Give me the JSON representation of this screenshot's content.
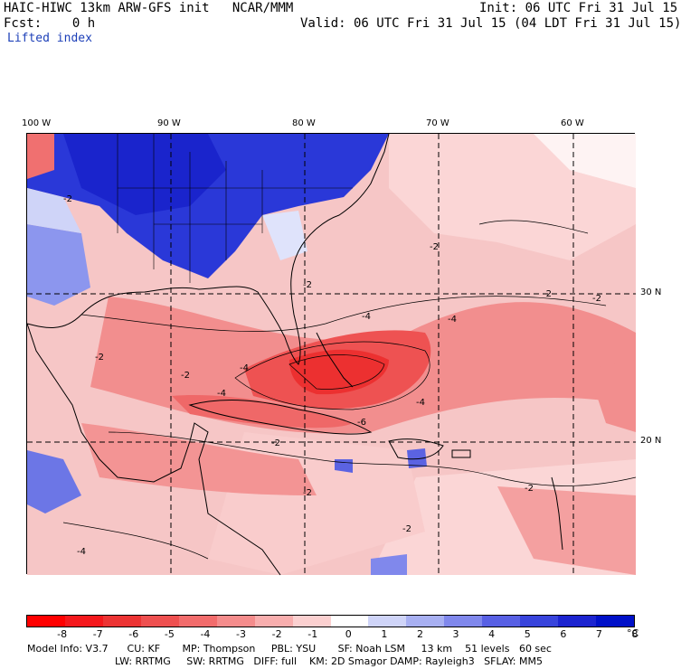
{
  "header": {
    "title": "HAIC-HIWC 13km ARW-GFS init   NCAR/MMM",
    "init": "Init: 06 UTC Fri 31 Jul 15",
    "fcst": "Fcst:    0 h",
    "valid": "Valid: 06 UTC Fri 31 Jul 15 (04 LDT Fri 31 Jul 15)",
    "field": "Lifted index"
  },
  "map": {
    "lon_labels": [
      "100 W",
      "90 W",
      "80 W",
      "70 W",
      "60 W"
    ],
    "lat_labels": [
      "30 N",
      "20 N"
    ],
    "contour_labels": [
      "-2",
      "-4",
      "-6"
    ]
  },
  "colorbar": {
    "colors": [
      "#ff0000",
      "#f4181c",
      "#ec3434",
      "#ee5050",
      "#f26c6c",
      "#f48c8c",
      "#f8aeae",
      "#fbd0d0",
      "#ffffff",
      "#cfd4f8",
      "#a8b0f2",
      "#8088ec",
      "#5860e4",
      "#3844dc",
      "#1c24d0",
      "#0010c8"
    ],
    "ticks": [
      "-8",
      "-7",
      "-6",
      "-5",
      "-4",
      "-3",
      "-2",
      "-1",
      "0",
      "1",
      "2",
      "3",
      "4",
      "5",
      "6",
      "7",
      "8"
    ],
    "unit": "°C"
  },
  "model_info": {
    "line1": "Model Info: V3.7      CU: KF       MP: Thompson     PBL: YSU       SF: Noah LSM     13 km    51 levels   60 sec",
    "line2": "LW: RRTMG     SW: RRTMG   DIFF: full    KM: 2D Smagor DAMP: Rayleigh3   SFLAY: MM5"
  }
}
